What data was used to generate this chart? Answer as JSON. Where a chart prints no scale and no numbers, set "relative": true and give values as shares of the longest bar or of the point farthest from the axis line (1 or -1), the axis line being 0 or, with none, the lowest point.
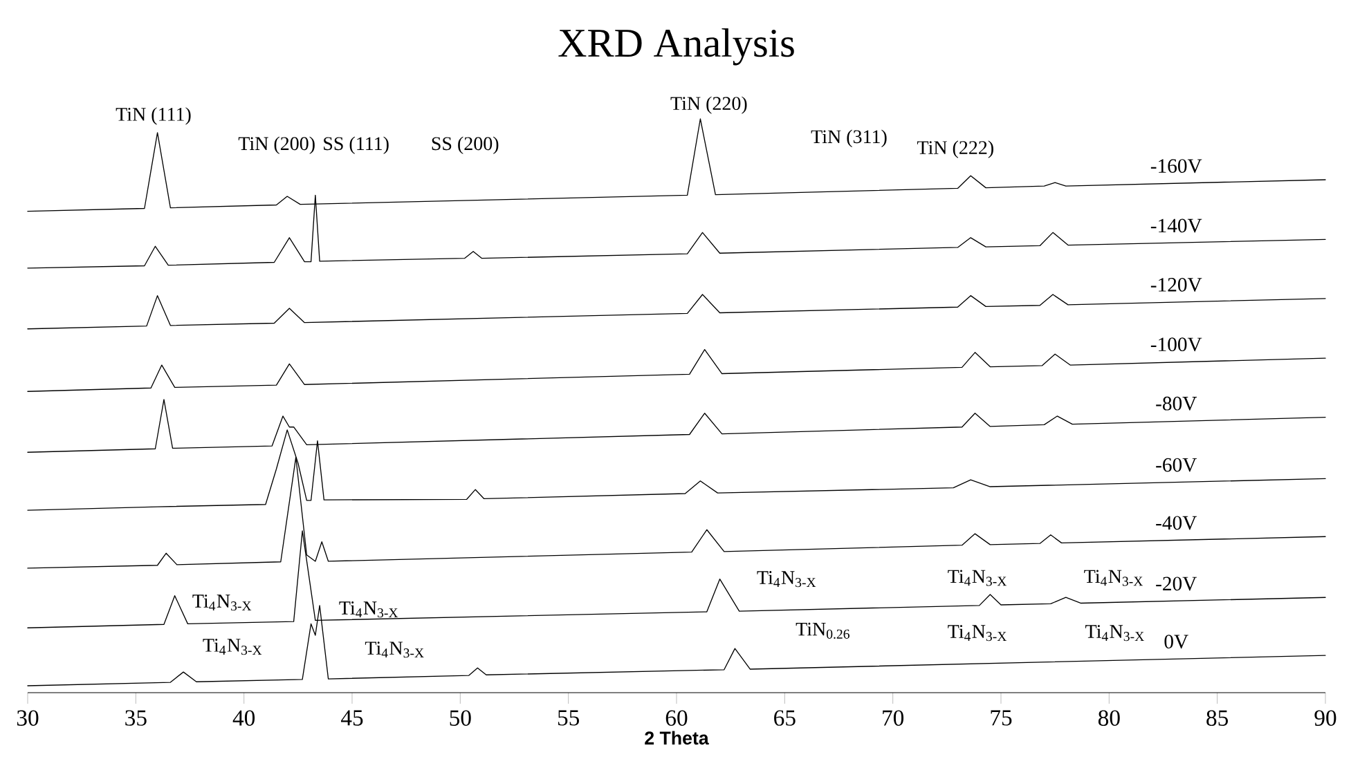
{
  "chart_data": {
    "type": "line",
    "title": "XRD Analysis",
    "xlabel": "2 Theta",
    "relative": true,
    "xlim": [
      30,
      90
    ],
    "xticks": [
      30,
      35,
      40,
      45,
      50,
      55,
      60,
      65,
      70,
      75,
      80,
      85,
      90
    ],
    "series": [
      {
        "name": "-160V",
        "color": "#000000",
        "x": [
          30,
          35.4,
          36.0,
          36.6,
          41.5,
          42.0,
          42.6,
          60.5,
          61.1,
          61.8,
          73.0,
          73.6,
          74.3,
          77.0,
          77.5,
          78.0,
          90
        ],
        "values": [
          0.839,
          0.844,
          0.976,
          0.845,
          0.85,
          0.865,
          0.851,
          0.867,
          1.0,
          0.868,
          0.879,
          0.901,
          0.88,
          0.883,
          0.889,
          0.883,
          0.894
        ]
      },
      {
        "name": "-140V",
        "color": "#000000",
        "x": [
          30,
          35.4,
          35.9,
          36.5,
          41.4,
          42.1,
          42.8,
          43.1,
          43.3,
          43.5,
          50.2,
          50.6,
          51.0,
          60.5,
          61.2,
          62.0,
          73.0,
          73.6,
          74.3,
          76.8,
          77.4,
          78.1,
          90
        ],
        "values": [
          0.74,
          0.744,
          0.778,
          0.745,
          0.75,
          0.793,
          0.751,
          0.751,
          0.867,
          0.752,
          0.757,
          0.769,
          0.757,
          0.765,
          0.802,
          0.766,
          0.776,
          0.793,
          0.777,
          0.779,
          0.802,
          0.78,
          0.79
        ]
      },
      {
        "name": "-120V",
        "color": "#000000",
        "x": [
          30,
          35.5,
          36.0,
          36.6,
          41.4,
          42.1,
          42.8,
          60.5,
          61.2,
          62.0,
          73.0,
          73.6,
          74.3,
          76.8,
          77.4,
          78.1,
          90
        ],
        "values": [
          0.634,
          0.639,
          0.692,
          0.64,
          0.644,
          0.67,
          0.645,
          0.661,
          0.694,
          0.662,
          0.672,
          0.692,
          0.673,
          0.675,
          0.694,
          0.676,
          0.687
        ]
      },
      {
        "name": "-100V",
        "color": "#000000",
        "x": [
          30,
          35.7,
          36.2,
          36.8,
          41.5,
          42.1,
          42.8,
          60.6,
          61.3,
          62.1,
          73.2,
          73.8,
          74.5,
          76.9,
          77.5,
          78.2,
          90
        ],
        "values": [
          0.525,
          0.531,
          0.571,
          0.532,
          0.536,
          0.573,
          0.537,
          0.555,
          0.598,
          0.556,
          0.567,
          0.593,
          0.568,
          0.57,
          0.59,
          0.571,
          0.583
        ]
      },
      {
        "name": "-80V",
        "color": "#000000",
        "x": [
          30,
          35.9,
          36.3,
          36.7,
          41.3,
          41.8,
          42.1,
          42.3,
          42.9,
          60.6,
          61.3,
          62.1,
          73.2,
          73.8,
          74.5,
          77.0,
          77.6,
          78.3,
          90
        ],
        "values": [
          0.419,
          0.425,
          0.511,
          0.426,
          0.43,
          0.482,
          0.463,
          0.463,
          0.432,
          0.45,
          0.487,
          0.451,
          0.463,
          0.487,
          0.464,
          0.467,
          0.482,
          0.468,
          0.48
        ]
      },
      {
        "name": "-60V",
        "color": "#000000",
        "x": [
          30,
          36.0,
          41.0,
          41.5,
          42.0,
          42.5,
          42.9,
          43.1,
          43.4,
          43.7,
          50.3,
          50.7,
          51.1,
          60.4,
          61.1,
          61.9,
          72.8,
          73.6,
          74.5,
          90
        ],
        "values": [
          0.318,
          0.324,
          0.328,
          0.39,
          0.458,
          0.4,
          0.335,
          0.335,
          0.439,
          0.336,
          0.337,
          0.354,
          0.338,
          0.347,
          0.369,
          0.348,
          0.357,
          0.371,
          0.359,
          0.373
        ]
      },
      {
        "name": "-40V",
        "color": "#000000",
        "x": [
          30,
          36.0,
          36.4,
          36.9,
          41.7,
          42.4,
          42.9,
          43.3,
          43.6,
          43.9,
          60.7,
          61.4,
          62.2,
          73.2,
          73.8,
          74.5,
          76.8,
          77.3,
          77.8,
          90
        ],
        "values": [
          0.217,
          0.222,
          0.243,
          0.223,
          0.228,
          0.41,
          0.24,
          0.229,
          0.263,
          0.229,
          0.245,
          0.284,
          0.246,
          0.257,
          0.277,
          0.258,
          0.26,
          0.275,
          0.261,
          0.272
        ]
      },
      {
        "name": "-20V",
        "color": "#000000",
        "x": [
          30,
          36.3,
          36.8,
          37.4,
          42.3,
          42.7,
          43.3,
          61.4,
          62.0,
          62.9,
          74.0,
          74.5,
          75.0,
          77.3,
          78.0,
          78.7,
          90
        ],
        "values": [
          0.113,
          0.119,
          0.169,
          0.12,
          0.124,
          0.282,
          0.126,
          0.141,
          0.198,
          0.142,
          0.152,
          0.171,
          0.153,
          0.155,
          0.166,
          0.156,
          0.166
        ]
      },
      {
        "name": "0V",
        "color": "#000000",
        "x": [
          30,
          36.6,
          37.2,
          37.8,
          42.7,
          43.1,
          43.3,
          43.5,
          43.9,
          50.4,
          50.8,
          51.2,
          62.2,
          62.7,
          63.4,
          90
        ],
        "values": [
          0.012,
          0.018,
          0.036,
          0.019,
          0.023,
          0.12,
          0.1,
          0.152,
          0.024,
          0.03,
          0.043,
          0.031,
          0.04,
          0.077,
          0.041,
          0.065
        ]
      }
    ],
    "annotations": [
      "TiN (111)",
      "TiN (200)",
      "SS (111)",
      "SS (200)",
      "TiN (220)",
      "TiN (311)",
      "TiN (222)",
      "Ti$_{4}$N$_{3-X}$",
      "Ti$_{4}$N$_{3-X}$",
      "Ti$_{4}$N$_{3-X}$",
      "Ti$_{4}$N$_{3-X}$",
      "Ti$_{4}$N$_{3-X}$",
      "Ti$_{4}$N$_{3-X}$",
      "Ti$_{4}$N$_{3-X}$",
      "TiN$_{0.26}$",
      "Ti$_{4}$N$_{3-X}$",
      "Ti$_{4}$N$_{3-X}$"
    ]
  }
}
